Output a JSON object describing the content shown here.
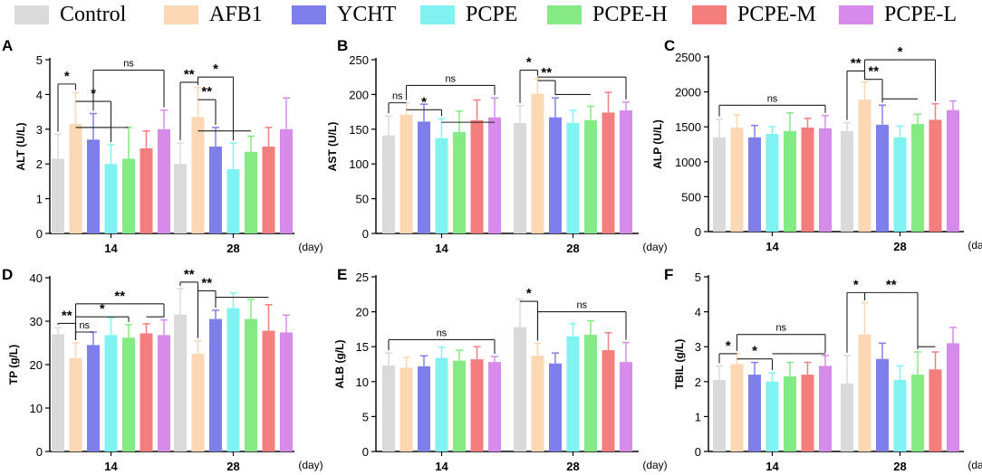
{
  "legend": {
    "groups": [
      "Control",
      "AFB1",
      "YCHT",
      "PCPE",
      "PCPE-H",
      "PCPE-M",
      "PCPE-L"
    ],
    "colors": [
      "#dadada",
      "#fbd7b4",
      "#7e7fea",
      "#80f2f2",
      "#84ea84",
      "#f47d7d",
      "#d68bea"
    ]
  },
  "chart_data": [
    {
      "type": "bar",
      "panel": "A",
      "ylabel": "ALT (U/L)",
      "xunit": "(day)",
      "categories": [
        "14",
        "28"
      ],
      "ylim": [
        0,
        5
      ],
      "yticks": [
        0,
        1,
        2,
        3,
        4,
        5
      ],
      "series": [
        {
          "name": "Control",
          "values": [
            2.15,
            2.0
          ],
          "errors": [
            0.7,
            0.6
          ]
        },
        {
          "name": "AFB1",
          "values": [
            3.15,
            3.35
          ],
          "errors": [
            0.9,
            0.85
          ]
        },
        {
          "name": "YCHT",
          "values": [
            2.7,
            2.5
          ],
          "errors": [
            0.75,
            0.55
          ]
        },
        {
          "name": "PCPE",
          "values": [
            2.0,
            1.85
          ],
          "errors": [
            0.55,
            0.75
          ]
        },
        {
          "name": "PCPE-H",
          "values": [
            2.15,
            2.35
          ],
          "errors": [
            0.9,
            0.45
          ]
        },
        {
          "name": "PCPE-M",
          "values": [
            2.45,
            2.5
          ],
          "errors": [
            0.5,
            0.55
          ]
        },
        {
          "name": "PCPE-L",
          "values": [
            3.0,
            3.0
          ],
          "errors": [
            0.55,
            0.9
          ]
        }
      ],
      "annotations": [
        {
          "day": 0,
          "from": 0,
          "to": 1,
          "level": 4.3,
          "text": "*",
          "drops": [
            3,
            4
          ],
          "dropLevels": [
            3.05,
            3.05
          ]
        },
        {
          "day": 0,
          "from": 1,
          "to": 3,
          "level": 3.8,
          "text": "*"
        },
        {
          "day": 0,
          "from": 2,
          "to": 6,
          "level": 4.7,
          "text": "ns",
          "drops": [
            6
          ],
          "dropLevels": [
            3.7
          ]
        },
        {
          "day": 1,
          "from": 0,
          "to": 1,
          "level": 4.35,
          "text": "**",
          "drops": [
            4
          ],
          "dropLevels": [
            2.95
          ]
        },
        {
          "day": 1,
          "from": 1,
          "to": 2,
          "level": 3.85,
          "text": "**"
        },
        {
          "day": 1,
          "from": 1,
          "to": 3,
          "level": 4.5,
          "text": "*"
        }
      ]
    },
    {
      "type": "bar",
      "panel": "B",
      "ylabel": "AST (U/L)",
      "xunit": "(day)",
      "categories": [
        "14",
        "28"
      ],
      "ylim": [
        0,
        250
      ],
      "yticks": [
        0,
        50,
        100,
        150,
        200,
        250
      ],
      "series": [
        {
          "name": "Control",
          "values": [
            141,
            159
          ],
          "errors": [
            28,
            25
          ]
        },
        {
          "name": "AFB1",
          "values": [
            171,
            201
          ],
          "errors": [
            17,
            22
          ]
        },
        {
          "name": "YCHT",
          "values": [
            161,
            167
          ],
          "errors": [
            25,
            28
          ]
        },
        {
          "name": "PCPE",
          "values": [
            137,
            159
          ],
          "errors": [
            28,
            18
          ]
        },
        {
          "name": "PCPE-H",
          "values": [
            146,
            163
          ],
          "errors": [
            30,
            20
          ]
        },
        {
          "name": "PCPE-M",
          "values": [
            163,
            174
          ],
          "errors": [
            29,
            29
          ]
        },
        {
          "name": "PCPE-L",
          "values": [
            167,
            177
          ],
          "errors": [
            28,
            12
          ]
        }
      ],
      "annotations": [
        {
          "day": 0,
          "from": 0,
          "to": 1,
          "level": 188,
          "text": "ns"
        },
        {
          "day": 0,
          "from": 1,
          "to": 3,
          "level": 178,
          "text": "*",
          "drops": [
            6
          ],
          "dropLevels": [
            160
          ]
        },
        {
          "day": 0,
          "from": 1,
          "to": 6,
          "level": 213,
          "text": "ns"
        },
        {
          "day": 1,
          "from": 0,
          "to": 1,
          "level": 235,
          "text": "*"
        },
        {
          "day": 1,
          "from": 1,
          "to": 2,
          "level": 220,
          "text": "**",
          "drops": [
            4
          ],
          "dropLevels": [
            200
          ]
        },
        {
          "day": 1,
          "from": 1,
          "to": 6,
          "level": 225,
          "text": ""
        }
      ]
    },
    {
      "type": "bar",
      "panel": "C",
      "ylabel": "ALP (U/L)",
      "xunit": "(day)",
      "categories": [
        "14",
        "28"
      ],
      "ylim": [
        0,
        2500
      ],
      "yticks": [
        0,
        500,
        1000,
        1500,
        2000,
        2500
      ],
      "series": [
        {
          "name": "Control",
          "values": [
            1350,
            1440
          ],
          "errors": [
            260,
            120
          ]
        },
        {
          "name": "AFB1",
          "values": [
            1490,
            1890
          ],
          "errors": [
            180,
            250
          ]
        },
        {
          "name": "YCHT",
          "values": [
            1350,
            1530
          ],
          "errors": [
            170,
            280
          ]
        },
        {
          "name": "PCPE",
          "values": [
            1400,
            1350
          ],
          "errors": [
            100,
            160
          ]
        },
        {
          "name": "PCPE-H",
          "values": [
            1440,
            1540
          ],
          "errors": [
            260,
            140
          ]
        },
        {
          "name": "PCPE-M",
          "values": [
            1490,
            1600
          ],
          "errors": [
            130,
            230
          ]
        },
        {
          "name": "PCPE-L",
          "values": [
            1480,
            1740
          ],
          "errors": [
            180,
            130
          ]
        }
      ],
      "annotations": [
        {
          "day": 0,
          "from": 0,
          "to": 6,
          "level": 1810,
          "text": "ns"
        },
        {
          "day": 1,
          "from": 0,
          "to": 1,
          "level": 2300,
          "text": "**"
        },
        {
          "day": 1,
          "from": 1,
          "to": 2,
          "level": 2180,
          "text": "**",
          "drops": [
            4
          ],
          "dropLevels": [
            1900
          ]
        },
        {
          "day": 1,
          "from": 1,
          "to": 5,
          "level": 2460,
          "text": "*"
        }
      ]
    },
    {
      "type": "bar",
      "panel": "D",
      "ylabel": "TP (g/L)",
      "xunit": "(day)",
      "categories": [
        "14",
        "28"
      ],
      "ylim": [
        0,
        40
      ],
      "yticks": [
        0,
        10,
        20,
        30,
        40
      ],
      "series": [
        {
          "name": "Control",
          "values": [
            27,
            31.5
          ],
          "errors": [
            1.5,
            6
          ]
        },
        {
          "name": "AFB1",
          "values": [
            21.5,
            22.5
          ],
          "errors": [
            3.5,
            3
          ]
        },
        {
          "name": "YCHT",
          "values": [
            24.5,
            30.5
          ],
          "errors": [
            3,
            2
          ]
        },
        {
          "name": "PCPE",
          "values": [
            26.8,
            33
          ],
          "errors": [
            4,
            3.5
          ]
        },
        {
          "name": "PCPE-H",
          "values": [
            26.2,
            30.5
          ],
          "errors": [
            3,
            4.5
          ]
        },
        {
          "name": "PCPE-M",
          "values": [
            27.2,
            27.8
          ],
          "errors": [
            2.2,
            6
          ]
        },
        {
          "name": "PCPE-L",
          "values": [
            26.8,
            27.4
          ],
          "errors": [
            3.5,
            4
          ]
        }
      ],
      "annotations": [
        {
          "day": 0,
          "from": 0,
          "to": 1,
          "level": 29.5,
          "text": "**"
        },
        {
          "day": 0,
          "from": 1,
          "to": 2,
          "level": 27.5,
          "text": "ns"
        },
        {
          "day": 0,
          "from": 1,
          "to": 4,
          "level": 31.0,
          "text": "*"
        },
        {
          "day": 0,
          "from": 1,
          "to": 6,
          "level": 34.0,
          "text": "**",
          "drops": [
            5
          ],
          "dropLevels": [
            31.0
          ]
        },
        {
          "day": 1,
          "from": 0,
          "to": 1,
          "level": 39.0,
          "text": "**"
        },
        {
          "day": 1,
          "from": 1,
          "to": 2,
          "level": 37.0,
          "text": "**",
          "drops": [
            5
          ],
          "dropLevels": [
            35.5
          ]
        }
      ]
    },
    {
      "type": "bar",
      "panel": "E",
      "ylabel": "ALB (g/L)",
      "xunit": "(day)",
      "categories": [
        "14",
        "28"
      ],
      "ylim": [
        0,
        25
      ],
      "yticks": [
        0,
        5,
        10,
        15,
        20,
        25
      ],
      "series": [
        {
          "name": "Control",
          "values": [
            12.3,
            17.8
          ],
          "errors": [
            1.8,
            4
          ]
        },
        {
          "name": "AFB1",
          "values": [
            12.0,
            13.7
          ],
          "errors": [
            1.5,
            1.8
          ]
        },
        {
          "name": "YCHT",
          "values": [
            12.2,
            12.6
          ],
          "errors": [
            1.5,
            1.5
          ]
        },
        {
          "name": "PCPE",
          "values": [
            13.4,
            16.5
          ],
          "errors": [
            1.5,
            1.8
          ]
        },
        {
          "name": "PCPE-H",
          "values": [
            13.0,
            16.7
          ],
          "errors": [
            1.5,
            2
          ]
        },
        {
          "name": "PCPE-M",
          "values": [
            13.2,
            14.5
          ],
          "errors": [
            1.8,
            2.5
          ]
        },
        {
          "name": "PCPE-L",
          "values": [
            12.8,
            12.8
          ],
          "errors": [
            0.8,
            2.8
          ]
        }
      ],
      "annotations": [
        {
          "day": 0,
          "from": 0,
          "to": 6,
          "level": 16.0,
          "text": "ns"
        },
        {
          "day": 1,
          "from": 0,
          "to": 1,
          "level": 21.5,
          "text": "*"
        },
        {
          "day": 1,
          "from": 1,
          "to": 6,
          "level": 20.0,
          "text": "ns"
        }
      ]
    },
    {
      "type": "bar",
      "panel": "F",
      "ylabel": "TBIL (g/L)",
      "xunit": "(day)",
      "categories": [
        "14",
        "28"
      ],
      "ylim": [
        0,
        5
      ],
      "yticks": [
        0,
        1,
        2,
        3,
        4,
        5
      ],
      "series": [
        {
          "name": "Control",
          "values": [
            2.05,
            1.95
          ],
          "errors": [
            0.4,
            0.8
          ]
        },
        {
          "name": "AFB1",
          "values": [
            2.5,
            3.35
          ],
          "errors": [
            0.3,
            0.9
          ]
        },
        {
          "name": "YCHT",
          "values": [
            2.2,
            2.65
          ],
          "errors": [
            0.35,
            0.45
          ]
        },
        {
          "name": "PCPE",
          "values": [
            2.0,
            2.05
          ],
          "errors": [
            0.25,
            0.4
          ]
        },
        {
          "name": "PCPE-H",
          "values": [
            2.15,
            2.2
          ],
          "errors": [
            0.4,
            0.65
          ]
        },
        {
          "name": "PCPE-M",
          "values": [
            2.2,
            2.35
          ],
          "errors": [
            0.35,
            0.5
          ]
        },
        {
          "name": "PCPE-L",
          "values": [
            2.45,
            3.1
          ],
          "errors": [
            0.3,
            0.45
          ]
        }
      ],
      "annotations": [
        {
          "day": 0,
          "from": 0,
          "to": 1,
          "level": 2.8,
          "text": "*"
        },
        {
          "day": 0,
          "from": 1,
          "to": 3,
          "level": 2.65,
          "text": "*",
          "drops": [
            6
          ],
          "dropLevels": [
            2.8
          ]
        },
        {
          "day": 0,
          "from": 1,
          "to": 6,
          "level": 3.35,
          "text": "ns"
        },
        {
          "day": 1,
          "from": 0,
          "to": 1,
          "level": 4.55,
          "text": "*"
        },
        {
          "day": 1,
          "from": 1,
          "to": 4,
          "level": 4.55,
          "text": "**",
          "drops": [
            5
          ],
          "dropLevels": [
            3.0
          ]
        }
      ]
    }
  ]
}
